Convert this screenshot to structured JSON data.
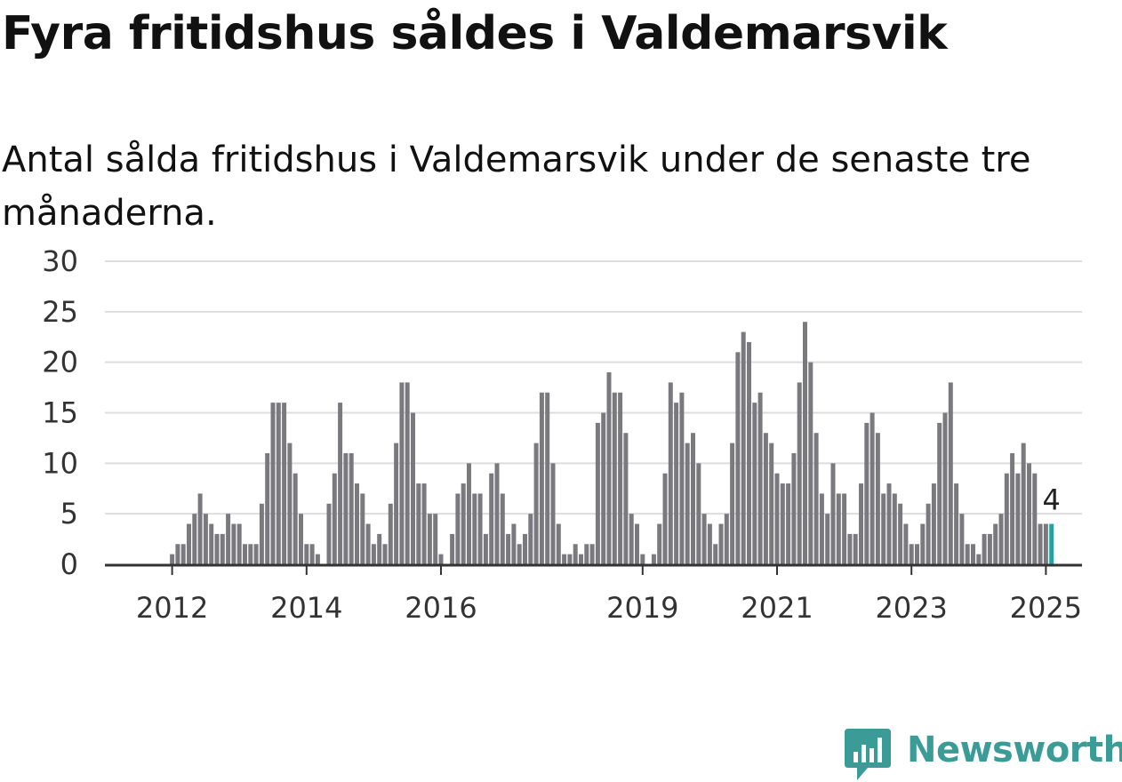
{
  "title": "Fyra fritidshus såldes i Valdemarsvik",
  "subtitle": "Antal sålda fritidshus i Valdemarsvik under de senaste tre månaderna.",
  "brand": {
    "name": "Newsworthy"
  },
  "colors": {
    "bar": "#7a797e",
    "highlight": "#23a3a0",
    "grid": "#dddddd",
    "axis": "#333333",
    "brand": "#3a9b97"
  },
  "chart_data": {
    "type": "bar",
    "title": "",
    "xlabel": "",
    "ylabel": "",
    "ylim": [
      0,
      30
    ],
    "yticks": [
      0,
      5,
      10,
      15,
      20,
      25,
      30
    ],
    "grid": true,
    "start_year": 2011,
    "start_month": 1,
    "x_tick_labels": [
      "2012",
      "2014",
      "2016",
      "2019",
      "2021",
      "2023",
      "2025"
    ],
    "x_tick_months": [
      "2012-01",
      "2014-01",
      "2016-01",
      "2019-01",
      "2021-01",
      "2023-01",
      "2025-01"
    ],
    "highlight_label": "4",
    "values": [
      0,
      0,
      0,
      0,
      0,
      0,
      0,
      0,
      0,
      0,
      0,
      0,
      1,
      2,
      2,
      4,
      5,
      7,
      5,
      4,
      3,
      3,
      5,
      4,
      4,
      2,
      2,
      2,
      6,
      11,
      16,
      16,
      16,
      12,
      9,
      5,
      2,
      2,
      1,
      0,
      6,
      9,
      16,
      11,
      11,
      8,
      7,
      4,
      2,
      3,
      2,
      6,
      12,
      18,
      18,
      15,
      8,
      8,
      5,
      5,
      1,
      0,
      3,
      7,
      8,
      10,
      7,
      7,
      3,
      9,
      10,
      7,
      3,
      4,
      2,
      3,
      5,
      12,
      17,
      17,
      10,
      4,
      1,
      1,
      2,
      1,
      2,
      2,
      14,
      15,
      19,
      17,
      17,
      13,
      5,
      4,
      1,
      0,
      1,
      4,
      9,
      18,
      16,
      17,
      12,
      13,
      10,
      5,
      4,
      2,
      4,
      5,
      12,
      21,
      23,
      22,
      16,
      17,
      13,
      12,
      9,
      8,
      8,
      11,
      18,
      24,
      20,
      13,
      7,
      5,
      10,
      7,
      7,
      3,
      3,
      8,
      14,
      15,
      13,
      7,
      8,
      7,
      6,
      4,
      2,
      2,
      4,
      6,
      8,
      14,
      15,
      18,
      8,
      5,
      2,
      2,
      1,
      3,
      3,
      4,
      5,
      9,
      11,
      9,
      12,
      10,
      9,
      4,
      4,
      4
    ]
  }
}
